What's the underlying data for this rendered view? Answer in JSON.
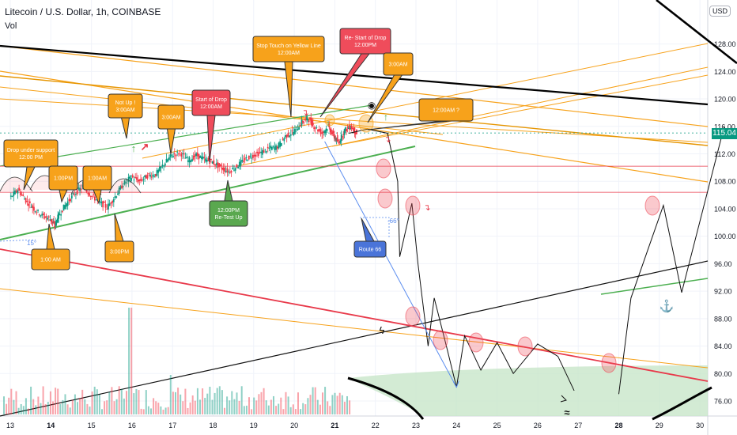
{
  "header": {
    "title": "Litecoin / U.S. Dollar, 1h, COINBASE",
    "indicator": "Vol",
    "currency_button": "USD"
  },
  "last_price": "115.04",
  "colors": {
    "up": "#089981",
    "down": "#f23645",
    "orange_line": "#f7a21b",
    "dark_orange_line": "#f5a623",
    "green_line": "#4caf50",
    "red_line": "#e8394a",
    "black_line": "#000000",
    "route_blue": "#5b8def",
    "bubble_orange": "#f7a21b",
    "bubble_red": "#ef4c5b",
    "bubble_green": "#5aa84f",
    "bubble_blue": "#4a74d9",
    "support_zone": "#c8e6c9"
  },
  "chart_data": {
    "type": "candlestick",
    "title": "Litecoin / U.S. Dollar, 1h, COINBASE",
    "x_ticks": [
      "13",
      "14",
      "15",
      "16",
      "17",
      "18",
      "19",
      "20",
      "21",
      "22",
      "23",
      "24",
      "25",
      "26",
      "27",
      "28",
      "29",
      "30"
    ],
    "x_ticks_bold": [
      "14",
      "21",
      "28"
    ],
    "y_ticks": [
      "128.00",
      "124.00",
      "120.00",
      "116.00",
      "112.00",
      "108.00",
      "104.00",
      "100.00",
      "96.00",
      "92.00",
      "88.00",
      "84.00",
      "80.00",
      "76.00"
    ],
    "ylim": [
      74.5,
      131.5
    ],
    "price_path": [
      [
        13.0,
        105.5
      ],
      [
        13.2,
        106.8
      ],
      [
        13.4,
        105.2
      ],
      [
        13.6,
        104.0
      ],
      [
        13.8,
        103.0
      ],
      [
        14.0,
        102.5
      ],
      [
        14.1,
        101.5
      ],
      [
        14.2,
        103.0
      ],
      [
        14.4,
        104.8
      ],
      [
        14.6,
        106.2
      ],
      [
        14.8,
        107.2
      ],
      [
        15.0,
        106.0
      ],
      [
        15.2,
        105.0
      ],
      [
        15.4,
        104.2
      ],
      [
        15.6,
        105.8
      ],
      [
        15.8,
        107.6
      ],
      [
        16.0,
        108.6
      ],
      [
        16.2,
        108.0
      ],
      [
        16.4,
        108.8
      ],
      [
        16.6,
        109.0
      ],
      [
        16.8,
        110.5
      ],
      [
        17.0,
        111.8
      ],
      [
        17.2,
        112.2
      ],
      [
        17.4,
        111.0
      ],
      [
        17.6,
        111.8
      ],
      [
        17.8,
        111.2
      ],
      [
        18.0,
        110.8
      ],
      [
        18.2,
        110.0
      ],
      [
        18.4,
        109.4
      ],
      [
        18.6,
        110.2
      ],
      [
        18.8,
        111.2
      ],
      [
        19.0,
        111.8
      ],
      [
        19.2,
        112.2
      ],
      [
        19.4,
        112.8
      ],
      [
        19.6,
        113.0
      ],
      [
        19.8,
        114.6
      ],
      [
        20.0,
        115.2
      ],
      [
        20.2,
        116.6
      ],
      [
        20.35,
        117.2
      ],
      [
        20.5,
        116.0
      ],
      [
        20.7,
        115.0
      ],
      [
        20.85,
        116.0
      ],
      [
        21.0,
        114.4
      ],
      [
        21.1,
        113.6
      ],
      [
        21.25,
        115.4
      ],
      [
        21.4,
        116.0
      ],
      [
        21.55,
        115.0
      ]
    ],
    "volume_range": [
      0.0,
      1.0
    ],
    "levels": [
      {
        "price": 110.2,
        "color": "red"
      },
      {
        "price": 106.4,
        "color": "red"
      }
    ],
    "projection_path": [
      [
        21.35,
        115.0
      ],
      [
        21.8,
        115.6
      ],
      [
        22.3,
        115.0
      ],
      [
        22.55,
        108.0
      ],
      [
        22.6,
        97.0
      ],
      [
        22.9,
        104.8
      ],
      [
        23.05,
        96.0
      ],
      [
        23.3,
        84.0
      ],
      [
        23.45,
        91.0
      ],
      [
        23.75,
        84.0
      ],
      [
        24.0,
        78.0
      ],
      [
        24.2,
        85.5
      ],
      [
        24.6,
        80.5
      ],
      [
        25.0,
        84.5
      ],
      [
        25.4,
        80.0
      ],
      [
        26.0,
        84.3
      ],
      [
        26.5,
        82.5
      ],
      [
        26.9,
        77.5
      ]
    ],
    "forecast_path": [
      [
        28.0,
        77.0
      ],
      [
        28.3,
        91.0
      ],
      [
        29.1,
        104.5
      ],
      [
        29.55,
        91.8
      ],
      [
        30.6,
        116.0
      ]
    ],
    "route_66_path": [
      [
        20.75,
        113.8
      ],
      [
        24.0,
        78.0
      ]
    ],
    "angles": [
      "15°",
      "-66°"
    ],
    "annotations": [
      {
        "text": "Drop under support\n12:00 PM",
        "color": "orange"
      },
      {
        "text": "1:00PM",
        "color": "orange"
      },
      {
        "text": "1:00AM",
        "color": "orange"
      },
      {
        "text": "Not Up !\n3:00AM",
        "color": "orange"
      },
      {
        "text": "3:00AM",
        "color": "orange"
      },
      {
        "text": "Start of Drop\n12:00AM",
        "color": "red"
      },
      {
        "text": "Stop Touch on Yellow Line\n12:00AM",
        "color": "orange"
      },
      {
        "text": "Re- Start of Drop\n12:00PM",
        "color": "red"
      },
      {
        "text": "3:00AM",
        "color": "orange"
      },
      {
        "text": "12:00AM ?",
        "color": "orange"
      },
      {
        "text": "1:00 AM",
        "color": "orange"
      },
      {
        "text": "3:00PM",
        "color": "orange"
      },
      {
        "text": "12:00PM\nRe-Test Up",
        "color": "green"
      },
      {
        "text": "Route 66",
        "color": "blue"
      }
    ]
  }
}
